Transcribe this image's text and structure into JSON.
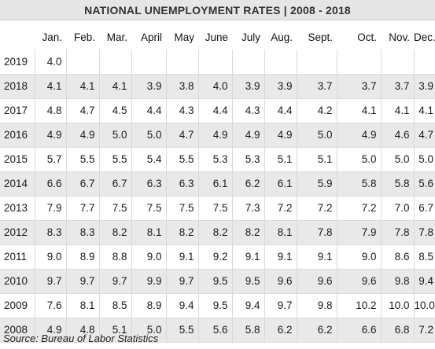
{
  "title": "NATIONAL UNEMPLOYMENT RATES | 2008 - 2018",
  "columns": [
    "",
    "Jan.",
    "Feb.",
    "Mar.",
    "April",
    "May",
    "June",
    "July",
    "Aug.",
    "Sept.",
    "Oct.",
    "Nov.",
    "Dec."
  ],
  "rows": [
    [
      "2019",
      "4.0",
      "",
      "",
      "",
      "",
      "",
      "",
      "",
      "",
      "",
      "",
      ""
    ],
    [
      "2018",
      "4.1",
      "4.1",
      "4.1",
      "3.9",
      "3.8",
      "4.0",
      "3.9",
      "3.9",
      "3.7",
      "3.7",
      "3.7",
      "3.9"
    ],
    [
      "2017",
      "4.8",
      "4.7",
      "4.5",
      "4.4",
      "4.3",
      "4.4",
      "4.3",
      "4.4",
      "4.2",
      "4.1",
      "4.1",
      "4.1"
    ],
    [
      "2016",
      "4.9",
      "4.9",
      "5.0",
      "5.0",
      "4.7",
      "4.9",
      "4.9",
      "4.9",
      "5.0",
      "4.9",
      "4.6",
      "4.7"
    ],
    [
      "2015",
      "5.7",
      "5.5",
      "5.5",
      "5.4",
      "5.5",
      "5.3",
      "5.3",
      "5.1",
      "5.1",
      "5.0",
      "5.0",
      "5.0"
    ],
    [
      "2014",
      "6.6",
      "6.7",
      "6.7",
      "6.3",
      "6.3",
      "6.1",
      "6.2",
      "6.1",
      "5.9",
      "5.8",
      "5.8",
      "5.6"
    ],
    [
      "2013",
      "7.9",
      "7.7",
      "7.5",
      "7.5",
      "7.5",
      "7.5",
      "7.3",
      "7.2",
      "7.2",
      "7.2",
      "7.0",
      "6.7"
    ],
    [
      "2012",
      "8.3",
      "8.3",
      "8.2",
      "8.1",
      "8.2",
      "8.2",
      "8.2",
      "8.1",
      "7.8",
      "7.9",
      "7.8",
      "7.8"
    ],
    [
      "2011",
      "9.0",
      "8.9",
      "8.8",
      "9.0",
      "9.1",
      "9.2",
      "9.1",
      "9.1",
      "9.1",
      "9.0",
      "8.6",
      "8.5"
    ],
    [
      "2010",
      "9.7",
      "9.7",
      "9.7",
      "9.9",
      "9.7",
      "9.5",
      "9.5",
      "9.6",
      "9.6",
      "9.6",
      "9.8",
      "9.4"
    ],
    [
      "2009",
      "7.6",
      "8.1",
      "8.5",
      "8.9",
      "9.4",
      "9.5",
      "9.4",
      "9.7",
      "9.8",
      "10.2",
      "10.0",
      "10.0"
    ],
    [
      "2008",
      "4.9",
      "4.8",
      "5.1",
      "5.0",
      "5.5",
      "5.6",
      "5.8",
      "6.2",
      "6.2",
      "6.6",
      "6.8",
      "7.2"
    ]
  ],
  "source": "Source: Bureau of Labor Statistics"
}
